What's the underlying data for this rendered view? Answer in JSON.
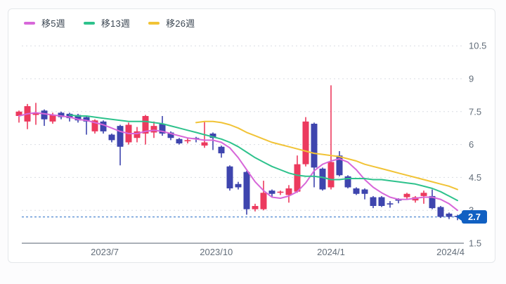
{
  "chart_data": {
    "type": "candlestick",
    "title": "",
    "interval": "weekly",
    "grid": true,
    "legend_position": "top-left",
    "y_axis_side": "right",
    "y_ticks": [
      {
        "label": "10.5",
        "value": 10.5
      },
      {
        "label": "9",
        "value": 9
      },
      {
        "label": "7.5",
        "value": 7.5
      },
      {
        "label": "6",
        "value": 6
      },
      {
        "label": "4.5",
        "value": 4.5
      },
      {
        "label": "3",
        "value": 3
      },
      {
        "label": "1.5",
        "value": 1.5
      }
    ],
    "x_ticks": [
      {
        "label": "2023/7",
        "index": 10.17
      },
      {
        "label": "2023/10",
        "index": 23.4
      },
      {
        "label": "2024/1",
        "index": 37.0
      },
      {
        "label": "2024/4",
        "index": 51.17
      }
    ],
    "y_axis_range": [
      1.5,
      11.3
    ],
    "last_price": {
      "label": "2.7",
      "value": 2.7
    },
    "colors": {
      "up": "#ec3a5e",
      "down": "#3e45ae",
      "price_line": "#5b8fd4",
      "badge_bg": "#1160c2",
      "badge_text": "#ffffff",
      "grid": "#d9dde3",
      "axis_line": "#8e969f",
      "tick_text": "#636e7a"
    },
    "candles": [
      [
        7.3,
        7.55,
        7.0,
        7.5
      ],
      [
        7.05,
        7.85,
        6.7,
        7.75
      ],
      [
        7.35,
        7.9,
        6.9,
        7.45
      ],
      [
        7.55,
        7.6,
        6.85,
        7.15
      ],
      [
        7.05,
        7.45,
        6.95,
        7.35
      ],
      [
        7.45,
        7.5,
        7.15,
        7.25
      ],
      [
        7.4,
        7.45,
        7.05,
        7.2
      ],
      [
        7.35,
        7.4,
        7.0,
        7.1
      ],
      [
        7.25,
        7.3,
        6.45,
        7.05
      ],
      [
        6.6,
        7.15,
        6.5,
        7.1
      ],
      [
        7.05,
        7.1,
        6.5,
        6.6
      ],
      [
        6.45,
        6.5,
        6.1,
        6.2
      ],
      [
        6.85,
        6.9,
        5.05,
        5.9
      ],
      [
        6.1,
        7.0,
        6.0,
        6.9
      ],
      [
        6.3,
        6.8,
        6.1,
        6.6
      ],
      [
        6.5,
        7.35,
        6.0,
        7.3
      ],
      [
        6.55,
        7.05,
        6.3,
        6.85
      ],
      [
        6.95,
        7.3,
        6.4,
        6.5
      ],
      [
        6.55,
        6.6,
        6.2,
        6.3
      ],
      [
        6.25,
        6.3,
        6.0,
        6.05
      ],
      [
        6.15,
        6.3,
        6.05,
        6.2
      ],
      [
        6.3,
        6.35,
        6.1,
        6.25
      ],
      [
        5.95,
        7.05,
        5.85,
        6.1
      ],
      [
        6.5,
        6.55,
        5.75,
        6.3
      ],
      [
        5.9,
        5.95,
        5.4,
        5.6
      ],
      [
        5.0,
        5.05,
        3.9,
        4.0
      ],
      [
        4.2,
        4.3,
        3.95,
        4.05
      ],
      [
        4.75,
        4.8,
        2.8,
        3.05
      ],
      [
        3.05,
        3.3,
        2.95,
        3.2
      ],
      [
        3.05,
        4.35,
        3.0,
        3.8
      ],
      [
        3.9,
        3.95,
        3.6,
        3.75
      ],
      [
        3.8,
        3.9,
        3.7,
        3.85
      ],
      [
        3.7,
        4.15,
        3.35,
        4.0
      ],
      [
        3.85,
        5.5,
        3.8,
        5.1
      ],
      [
        5.1,
        7.25,
        5.0,
        7.05
      ],
      [
        6.95,
        7.0,
        4.05,
        4.95
      ],
      [
        4.9,
        4.95,
        3.9,
        3.95
      ],
      [
        4.05,
        8.7,
        3.95,
        5.2
      ],
      [
        5.5,
        5.7,
        4.55,
        4.6
      ],
      [
        4.55,
        4.6,
        4.0,
        4.05
      ],
      [
        4.0,
        4.05,
        3.7,
        3.75
      ],
      [
        3.95,
        4.0,
        3.5,
        3.75
      ],
      [
        3.6,
        3.65,
        3.1,
        3.2
      ],
      [
        3.6,
        3.65,
        3.15,
        3.2
      ],
      [
        3.32,
        3.42,
        3.12,
        3.28
      ],
      [
        3.5,
        3.55,
        3.32,
        3.44
      ],
      [
        3.6,
        3.8,
        3.5,
        3.75
      ],
      [
        3.45,
        3.65,
        3.35,
        3.6
      ],
      [
        3.65,
        3.9,
        3.3,
        3.8
      ],
      [
        3.65,
        3.95,
        3.05,
        3.1
      ],
      [
        3.15,
        3.2,
        2.65,
        2.7
      ],
      [
        2.85,
        2.9,
        2.6,
        2.7
      ],
      [
        2.75,
        2.8,
        2.55,
        2.7
      ]
    ],
    "series": [
      {
        "name": "移5週",
        "color": "#d767d9",
        "values": [
          7.3,
          7.4,
          7.45,
          7.4,
          7.35,
          7.3,
          7.25,
          7.15,
          7.1,
          7.0,
          6.9,
          6.75,
          6.6,
          6.5,
          6.5,
          6.6,
          6.65,
          6.6,
          6.5,
          6.4,
          6.3,
          6.25,
          6.2,
          6.2,
          6.1,
          5.85,
          5.4,
          4.85,
          4.3,
          3.9,
          3.6,
          3.55,
          3.65,
          3.85,
          4.25,
          4.8,
          5.1,
          5.25,
          5.35,
          5.2,
          4.85,
          4.4,
          4.05,
          3.8,
          3.6,
          3.5,
          3.5,
          3.55,
          3.6,
          3.6,
          3.5,
          3.3,
          3.0
        ]
      },
      {
        "name": "移13週",
        "color": "#2ec28c",
        "values": [
          null,
          null,
          null,
          null,
          null,
          null,
          7.35,
          7.3,
          7.3,
          7.25,
          7.2,
          7.15,
          7.1,
          7.05,
          7.05,
          7.05,
          7.0,
          6.95,
          6.85,
          6.75,
          6.65,
          6.55,
          6.45,
          6.35,
          6.25,
          6.1,
          5.9,
          5.65,
          5.4,
          5.2,
          5.0,
          4.85,
          4.7,
          4.6,
          4.55,
          4.55,
          4.5,
          4.4,
          4.4,
          4.45,
          4.45,
          4.45,
          4.4,
          4.4,
          4.35,
          4.3,
          4.25,
          4.2,
          4.1,
          4.0,
          3.85,
          3.65,
          3.45
        ]
      },
      {
        "name": "移26週",
        "color": "#f1c336",
        "values": [
          null,
          null,
          null,
          null,
          null,
          null,
          null,
          null,
          null,
          null,
          null,
          null,
          null,
          null,
          null,
          null,
          null,
          null,
          null,
          null,
          null,
          7.0,
          7.05,
          7.05,
          7.0,
          6.9,
          6.75,
          6.55,
          6.4,
          6.25,
          6.1,
          6.0,
          5.9,
          5.8,
          5.7,
          5.6,
          5.55,
          5.5,
          5.45,
          5.35,
          5.25,
          5.1,
          5.0,
          4.9,
          4.8,
          4.7,
          4.6,
          4.5,
          4.4,
          4.3,
          4.2,
          4.1,
          3.95
        ]
      }
    ]
  }
}
